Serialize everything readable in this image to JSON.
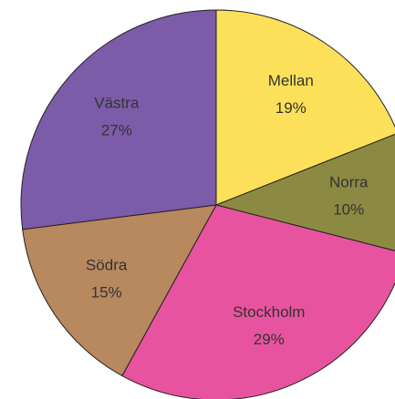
{
  "chart_data": {
    "type": "pie",
    "categories": [
      "Mellan",
      "Norra",
      "Stockholm",
      "Södra",
      "Västra"
    ],
    "values": [
      19,
      10,
      29,
      15,
      27
    ],
    "value_labels": [
      "19%",
      "10%",
      "29%",
      "15%",
      "27%"
    ],
    "colors": [
      "#fde05a",
      "#8c8a42",
      "#e8539f",
      "#b8885f",
      "#7c5ba8"
    ]
  }
}
